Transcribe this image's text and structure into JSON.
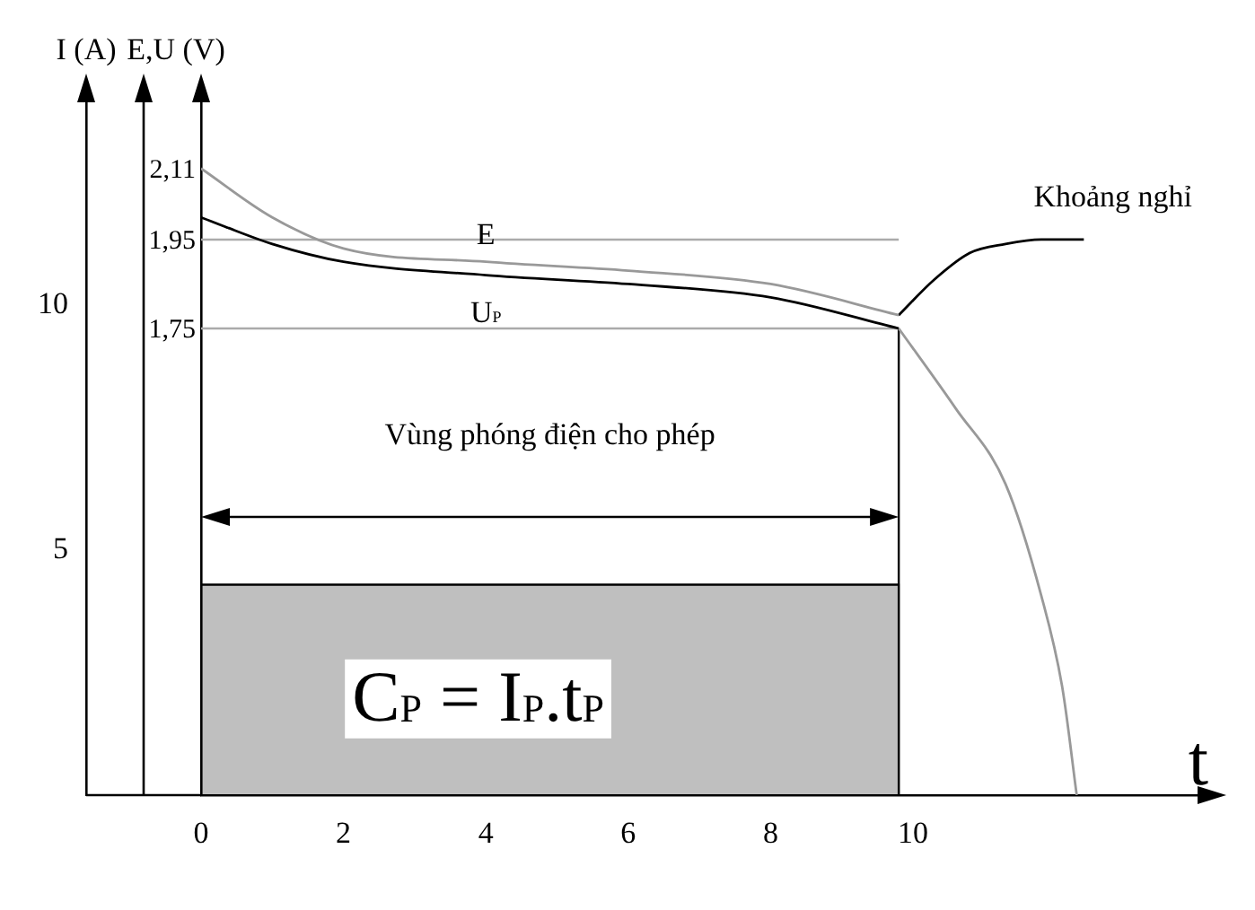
{
  "chart_data": {
    "type": "line",
    "xlabel": "t",
    "ylabel": "I (A)",
    "y2label": "E,U (V)",
    "xlim": [
      0,
      14.3
    ],
    "xticks": [
      0,
      2,
      4,
      6,
      8,
      10
    ],
    "ylim": [
      0,
      14.3
    ],
    "yticks": [
      5,
      10
    ],
    "y2lim": [
      0.7,
      2.275
    ],
    "y2ticks": [
      {
        "value": 2.11,
        "label": "2,11"
      },
      {
        "value": 1.95,
        "label": "1,95"
      },
      {
        "value": 1.75,
        "label": "1,75"
      }
    ],
    "grid": false,
    "legend": false,
    "marker": "none",
    "line_style": "solid",
    "series": [
      {
        "name": "E",
        "color": "#999999",
        "axis": "y2",
        "x": [
          0,
          1,
          2,
          4,
          6,
          8,
          9.8
        ],
        "values": [
          2.11,
          2.0,
          1.93,
          1.9,
          1.88,
          1.85,
          1.78
        ]
      },
      {
        "name": "U$_{P}$",
        "color": "#000000",
        "axis": "y2",
        "x": [
          0,
          1,
          2,
          4,
          6,
          8,
          9.8
        ],
        "values": [
          2.0,
          1.94,
          1.9,
          1.87,
          1.85,
          1.82,
          1.75
        ]
      },
      {
        "color": "#000000",
        "axis": "y2",
        "x": [
          9.8,
          10.3,
          10.8,
          11.3,
          11.8,
          12.4
        ],
        "values": [
          1.78,
          1.86,
          1.92,
          1.94,
          1.95,
          1.95
        ]
      },
      {
        "color": "#999999",
        "axis": "y2",
        "x": [
          9.8,
          10.6,
          11.3,
          11.8,
          12.1,
          12.3
        ],
        "values": [
          1.75,
          1.57,
          1.4,
          1.15,
          0.94,
          0.7
        ]
      },
      {
        "type": "area",
        "color": "#000000",
        "axis": "y",
        "x": [
          0,
          9.8
        ],
        "values": [
          4.3,
          4.3
        ]
      }
    ],
    "ref_lines": [
      {
        "axis": "y2",
        "value": 1.95,
        "color": "#aaaaaa"
      },
      {
        "axis": "y2",
        "value": 1.75,
        "color": "#aaaaaa"
      },
      {
        "axis": "x",
        "value": 9.8,
        "color": "#000000"
      }
    ],
    "annotations": [
      "Khoảng nghỉ",
      "Vùng phóng điện cho phép",
      "C$_{P}$ = I$_{P}$.t$_{P}$"
    ]
  }
}
